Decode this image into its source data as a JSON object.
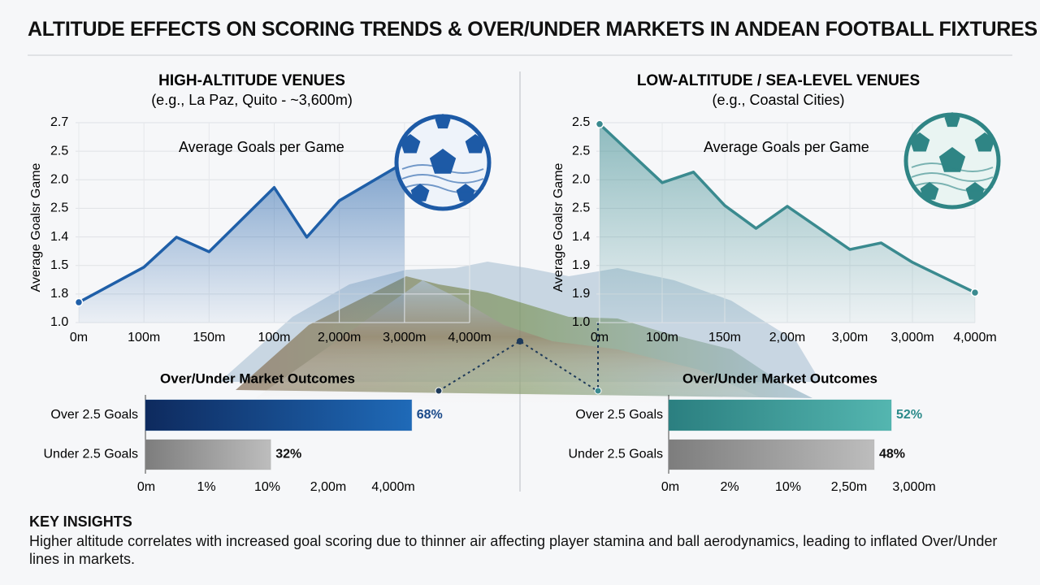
{
  "title": "ALTITUDE EFFECTS ON SCORING TRENDS & OVER/UNDER MARKETS IN ANDEAN FOOTBALL FIXTURES",
  "chart_data": [
    {
      "type": "line",
      "title": "HIGH-ALTITUDE VENUES",
      "subtitle": "(e.g., La Paz, Quito - ~3,600m)",
      "annotation": "Average Goals per Game",
      "ylabel": "Average Goalsr Game",
      "x": [
        0,
        1,
        1.5,
        2,
        3,
        3.5,
        4,
        5
      ],
      "series": [
        {
          "color": "#1f5fa8",
          "values": [
            0.71,
            1.94,
            2.99,
            2.48,
            4.73,
            2.99,
            4.27,
            5.61
          ]
        }
      ],
      "xlim": [
        0,
        6
      ],
      "xticks": [
        {
          "value": 0,
          "label": "0m"
        },
        {
          "value": 1,
          "label": "100m"
        },
        {
          "value": 2,
          "label": "150m"
        },
        {
          "value": 3,
          "label": "100m"
        },
        {
          "value": 4,
          "label": "2,000m"
        },
        {
          "value": 5,
          "label": "3,000m"
        },
        {
          "value": 6,
          "label": "4,000m"
        }
      ],
      "ylim": [
        0,
        7
      ],
      "yticks": [
        {
          "value": 0,
          "label": "1.0"
        },
        {
          "value": 1,
          "label": "1.8"
        },
        {
          "value": 2,
          "label": "1.5"
        },
        {
          "value": 3,
          "label": "1.4"
        },
        {
          "value": 4,
          "label": "2.5"
        },
        {
          "value": 5,
          "label": "2.0"
        },
        {
          "value": 6,
          "label": "2.5"
        },
        {
          "value": 7,
          "label": "2.7"
        }
      ],
      "grid": true
    },
    {
      "type": "line",
      "title": "LOW-ALTITUDE / SEA-LEVEL VENUES",
      "subtitle": "(e.g., Coastal Cities)",
      "annotation": "Average Goals per Game",
      "ylabel": "Average Goalsr Game",
      "x": [
        0,
        1,
        1.5,
        2,
        2.5,
        3,
        4,
        4.5,
        5,
        6
      ],
      "series": [
        {
          "color": "#3a8a8f",
          "values": [
            6.95,
            4.9,
            5.27,
            4.1,
            3.3,
            4.07,
            2.56,
            2.79,
            2.11,
            1.05
          ]
        }
      ],
      "xlim": [
        0,
        6
      ],
      "xticks": [
        {
          "value": 0,
          "label": "0m"
        },
        {
          "value": 1,
          "label": "100m"
        },
        {
          "value": 2,
          "label": "150m"
        },
        {
          "value": 3,
          "label": "2,00m"
        },
        {
          "value": 4,
          "label": "3,00m"
        },
        {
          "value": 5,
          "label": "3,000m"
        },
        {
          "value": 6,
          "label": "4,000m"
        }
      ],
      "ylim": [
        0,
        7
      ],
      "yticks": [
        {
          "value": 0,
          "label": "1.0"
        },
        {
          "value": 1,
          "label": "1.9"
        },
        {
          "value": 2,
          "label": "1.9"
        },
        {
          "value": 3,
          "label": "1.4"
        },
        {
          "value": 4,
          "label": "2.5"
        },
        {
          "value": 5,
          "label": "2.0"
        },
        {
          "value": 6,
          "label": "2.5"
        },
        {
          "value": 7,
          "label": "2.5"
        }
      ],
      "grid": true
    },
    {
      "type": "hbar",
      "title": "Over/Under Market Outcomes",
      "categories": [
        "Over 2.5 Goals",
        "Under 2.5 Goals"
      ],
      "values": [
        68,
        32
      ],
      "value_labels": [
        "68%",
        "32%"
      ],
      "colors": [
        "#1f5fa8",
        "#9a9a9a"
      ],
      "xlim": [
        0,
        100
      ],
      "axis_labels": [
        "0m",
        "1%",
        "10%",
        "2,00m",
        "4,000m"
      ]
    },
    {
      "type": "hbar",
      "title": "Over/Under Market Outcomes",
      "categories": [
        "Over 2.5 Goals",
        "Under 2.5 Goals"
      ],
      "values": [
        52,
        48
      ],
      "value_labels": [
        "52%",
        "48%"
      ],
      "colors": [
        "#3a9a9a",
        "#9a9a9a"
      ],
      "xlim": [
        0,
        100
      ],
      "axis_labels": [
        "0m",
        "2%",
        "10%",
        "2,50m",
        "3,000m"
      ]
    }
  ],
  "key_insights": {
    "heading": "KEY INSIGHTS",
    "text": "Higher altitude correlates with increased goal scoring due to thinner air affecting player stamina and ball aerodynamics, leading to inflated Over/Under lines in markets."
  }
}
